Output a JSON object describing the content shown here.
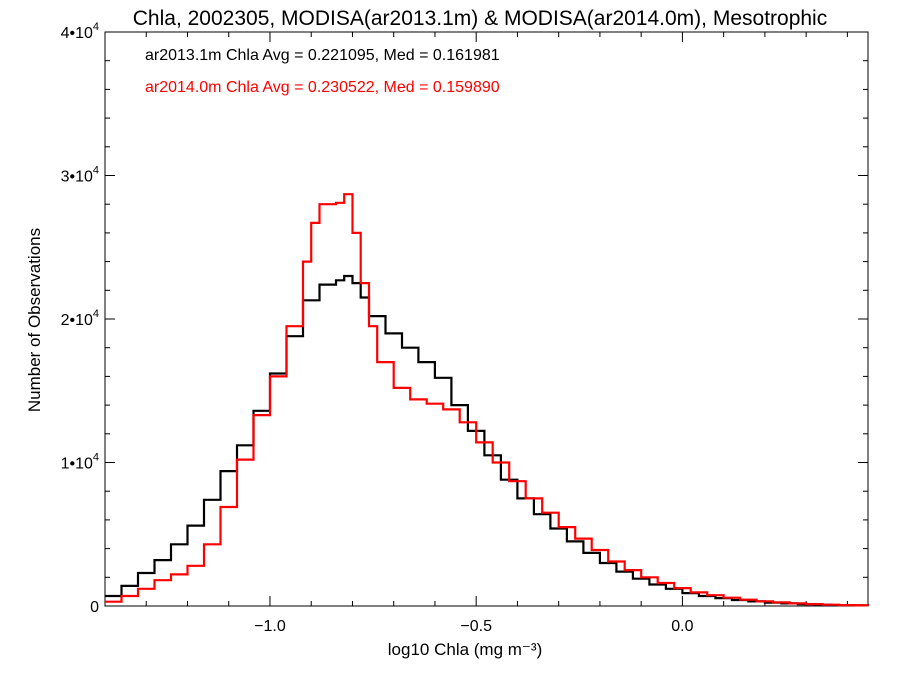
{
  "chart_data": {
    "type": "line",
    "title": "Chla, 2002305, MODISA(ar2013.1m) & MODISA(ar2014.0m), Mesotrophic",
    "xlabel": "log10 Chla (mg m⁻³)",
    "ylabel": "Number of Observations",
    "xlim": [
      -1.4,
      0.45
    ],
    "ylim": [
      0,
      40000
    ],
    "x_ticks": [
      {
        "value": -1.0,
        "label": "−1.0"
      },
      {
        "value": -0.5,
        "label": "−0.5"
      },
      {
        "value": 0.0,
        "label": "0.0"
      }
    ],
    "y_ticks": [
      {
        "value": 0,
        "mantissa": "0",
        "exponent": ""
      },
      {
        "value": 10000,
        "mantissa": "1•10",
        "exponent": "4"
      },
      {
        "value": 20000,
        "mantissa": "2•10",
        "exponent": "4"
      },
      {
        "value": 30000,
        "mantissa": "3•10",
        "exponent": "4"
      },
      {
        "value": 40000,
        "mantissa": "4•10",
        "exponent": "4"
      }
    ],
    "grid": false,
    "legend_position": "top-left",
    "series": [
      {
        "label": "ar2013.1m Chla Avg = 0.221095, Med = 0.161981",
        "color": "#000000",
        "style": "step",
        "points": [
          [
            -1.4,
            700
          ],
          [
            -1.36,
            1400
          ],
          [
            -1.32,
            2300
          ],
          [
            -1.28,
            3200
          ],
          [
            -1.24,
            4300
          ],
          [
            -1.2,
            5600
          ],
          [
            -1.16,
            7400
          ],
          [
            -1.12,
            9400
          ],
          [
            -1.08,
            11200
          ],
          [
            -1.04,
            13600
          ],
          [
            -1.0,
            16200
          ],
          [
            -0.96,
            18800
          ],
          [
            -0.92,
            21300
          ],
          [
            -0.88,
            22400
          ],
          [
            -0.84,
            22700
          ],
          [
            -0.82,
            23000
          ],
          [
            -0.8,
            22500
          ],
          [
            -0.78,
            21500
          ],
          [
            -0.76,
            20200
          ],
          [
            -0.72,
            19000
          ],
          [
            -0.68,
            18000
          ],
          [
            -0.64,
            17000
          ],
          [
            -0.6,
            15900
          ],
          [
            -0.56,
            14000
          ],
          [
            -0.52,
            12200
          ],
          [
            -0.48,
            10500
          ],
          [
            -0.44,
            8800
          ],
          [
            -0.4,
            7500
          ],
          [
            -0.36,
            6400
          ],
          [
            -0.32,
            5400
          ],
          [
            -0.28,
            4500
          ],
          [
            -0.24,
            3700
          ],
          [
            -0.2,
            3000
          ],
          [
            -0.16,
            2400
          ],
          [
            -0.12,
            1900
          ],
          [
            -0.08,
            1500
          ],
          [
            -0.04,
            1200
          ],
          [
            0.0,
            900
          ],
          [
            0.04,
            700
          ],
          [
            0.08,
            550
          ],
          [
            0.12,
            420
          ],
          [
            0.16,
            320
          ],
          [
            0.2,
            240
          ],
          [
            0.24,
            180
          ],
          [
            0.28,
            130
          ],
          [
            0.32,
            90
          ],
          [
            0.36,
            60
          ],
          [
            0.4,
            40
          ],
          [
            0.45,
            30
          ]
        ]
      },
      {
        "label": "ar2014.0m Chla Avg = 0.230522, Med = 0.159890",
        "color": "#ff0000",
        "style": "step",
        "points": [
          [
            -1.4,
            300
          ],
          [
            -1.36,
            700
          ],
          [
            -1.32,
            1200
          ],
          [
            -1.28,
            1800
          ],
          [
            -1.24,
            2200
          ],
          [
            -1.2,
            2800
          ],
          [
            -1.16,
            4300
          ],
          [
            -1.12,
            6900
          ],
          [
            -1.08,
            10200
          ],
          [
            -1.04,
            13300
          ],
          [
            -1.0,
            16000
          ],
          [
            -0.96,
            19500
          ],
          [
            -0.92,
            24000
          ],
          [
            -0.9,
            26700
          ],
          [
            -0.88,
            28000
          ],
          [
            -0.84,
            28100
          ],
          [
            -0.82,
            28700
          ],
          [
            -0.8,
            26000
          ],
          [
            -0.78,
            22500
          ],
          [
            -0.76,
            19500
          ],
          [
            -0.74,
            17000
          ],
          [
            -0.7,
            15200
          ],
          [
            -0.66,
            14400
          ],
          [
            -0.62,
            14100
          ],
          [
            -0.58,
            13700
          ],
          [
            -0.54,
            12800
          ],
          [
            -0.5,
            11400
          ],
          [
            -0.46,
            10000
          ],
          [
            -0.42,
            8700
          ],
          [
            -0.38,
            7500
          ],
          [
            -0.34,
            6500
          ],
          [
            -0.3,
            5500
          ],
          [
            -0.26,
            4700
          ],
          [
            -0.22,
            3900
          ],
          [
            -0.18,
            3100
          ],
          [
            -0.14,
            2500
          ],
          [
            -0.1,
            2000
          ],
          [
            -0.06,
            1600
          ],
          [
            -0.02,
            1250
          ],
          [
            0.02,
            950
          ],
          [
            0.06,
            750
          ],
          [
            0.1,
            580
          ],
          [
            0.14,
            440
          ],
          [
            0.18,
            330
          ],
          [
            0.22,
            250
          ],
          [
            0.26,
            180
          ],
          [
            0.3,
            130
          ],
          [
            0.34,
            90
          ],
          [
            0.38,
            60
          ],
          [
            0.42,
            40
          ],
          [
            0.45,
            30
          ]
        ]
      }
    ]
  }
}
